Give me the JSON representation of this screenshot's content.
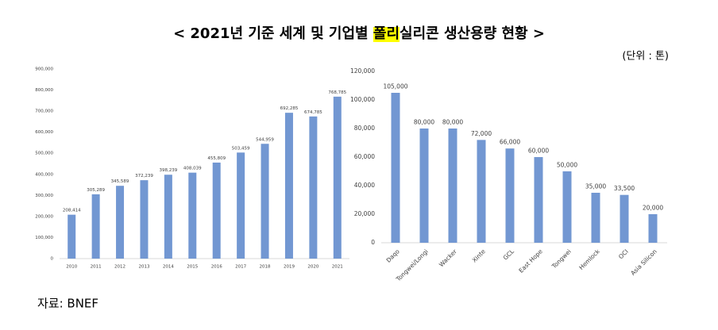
{
  "header": {
    "title_before": "< 2021년 기준 세계 및 기업별 ",
    "title_highlight": "폴리",
    "title_after": "실리콘 생산용량 현황 >",
    "unit": "(단위 : 톤)"
  },
  "chart_data": [
    {
      "type": "bar",
      "color": "#7297d2",
      "grid": false,
      "categories": [
        "2010",
        "2011",
        "2012",
        "2013",
        "2014",
        "2015",
        "2016",
        "2017",
        "2018",
        "2019",
        "2020",
        "2021"
      ],
      "values": [
        208414,
        305289,
        345589,
        372239,
        398239,
        408039,
        455809,
        503459,
        544959,
        692285,
        674785,
        768785
      ],
      "value_labels": [
        "208,414",
        "305,289",
        "345,589",
        "372,239",
        "398,239",
        "408,039",
        "455,809",
        "503,459",
        "544,959",
        "692,285",
        "674,785",
        "768,785"
      ],
      "ylim": [
        0,
        900000
      ],
      "yticks": [
        0,
        {
          "value": 100000,
          "label": "100,000"
        },
        {
          "value": 200000,
          "label": "200,000"
        },
        {
          "value": 300000,
          "label": "300,000"
        },
        {
          "value": 400000,
          "label": "400,000"
        },
        {
          "value": 500000,
          "label": "500,000"
        },
        {
          "value": 600000,
          "label": "600,000"
        },
        {
          "value": 700000,
          "label": "700,000"
        },
        {
          "value": 800000,
          "label": "800,000"
        },
        {
          "value": 900000,
          "label": "900,000"
        }
      ]
    },
    {
      "type": "bar",
      "color": "#7297d2",
      "grid": false,
      "categories": [
        "Daqo",
        "Tongwei/Longi",
        "Wacker",
        "Xinte",
        "GCL",
        "East Hope",
        "Tongwei",
        "Hemlock",
        "OCI",
        "Asia Silicon"
      ],
      "values": [
        105000,
        80000,
        80000,
        72000,
        66000,
        60000,
        50000,
        35000,
        33500,
        20000
      ],
      "value_labels": [
        "105,000",
        "80,000",
        "80,000",
        "72,000",
        "66,000",
        "60,000",
        "50,000",
        "35,000",
        "33,500",
        "20,000"
      ],
      "ylim": [
        0,
        120000
      ],
      "yticks": [
        0,
        {
          "value": 20000,
          "label": "20,000"
        },
        {
          "value": 40000,
          "label": "40,000"
        },
        {
          "value": 60000,
          "label": "60,000"
        },
        {
          "value": 80000,
          "label": "80,000"
        },
        {
          "value": 100000,
          "label": "100,000"
        },
        {
          "value": 120000,
          "label": "120,000"
        }
      ]
    }
  ],
  "footer": {
    "source": "자료: BNEF"
  }
}
